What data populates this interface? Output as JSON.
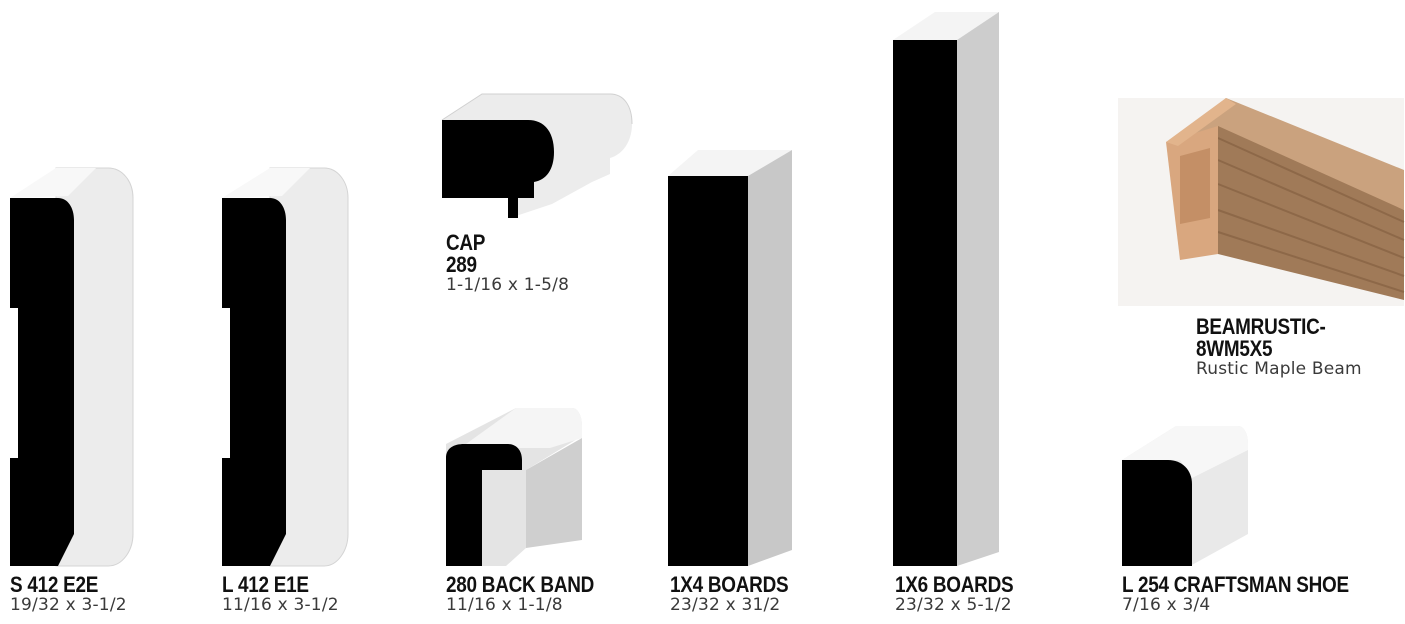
{
  "products": [
    {
      "name": "S 412 E2E",
      "dim": "19/32 x 3-1/2"
    },
    {
      "name": "L 412 E1E",
      "dim": "11/16 x 3-1/2"
    },
    {
      "name_line1": "CAP",
      "name_line2": "289",
      "dim": "1-1/16 x 1-5/8"
    },
    {
      "name": "280 BACK BAND",
      "dim": "11/16 x 1-1/8"
    },
    {
      "name": "1X4 BOARDS",
      "dim": "23/32 x 31/2"
    },
    {
      "name": "1X6 BOARDS",
      "dim": "23/32 x 5-1/2"
    },
    {
      "name_line1": "BEAMRUSTIC-",
      "name_line2": "8WM5X5",
      "dim": "Rustic Maple Beam"
    },
    {
      "name": "L 254 CRAFTSMAN SHOE",
      "dim": "7/16 x 3/4"
    }
  ]
}
